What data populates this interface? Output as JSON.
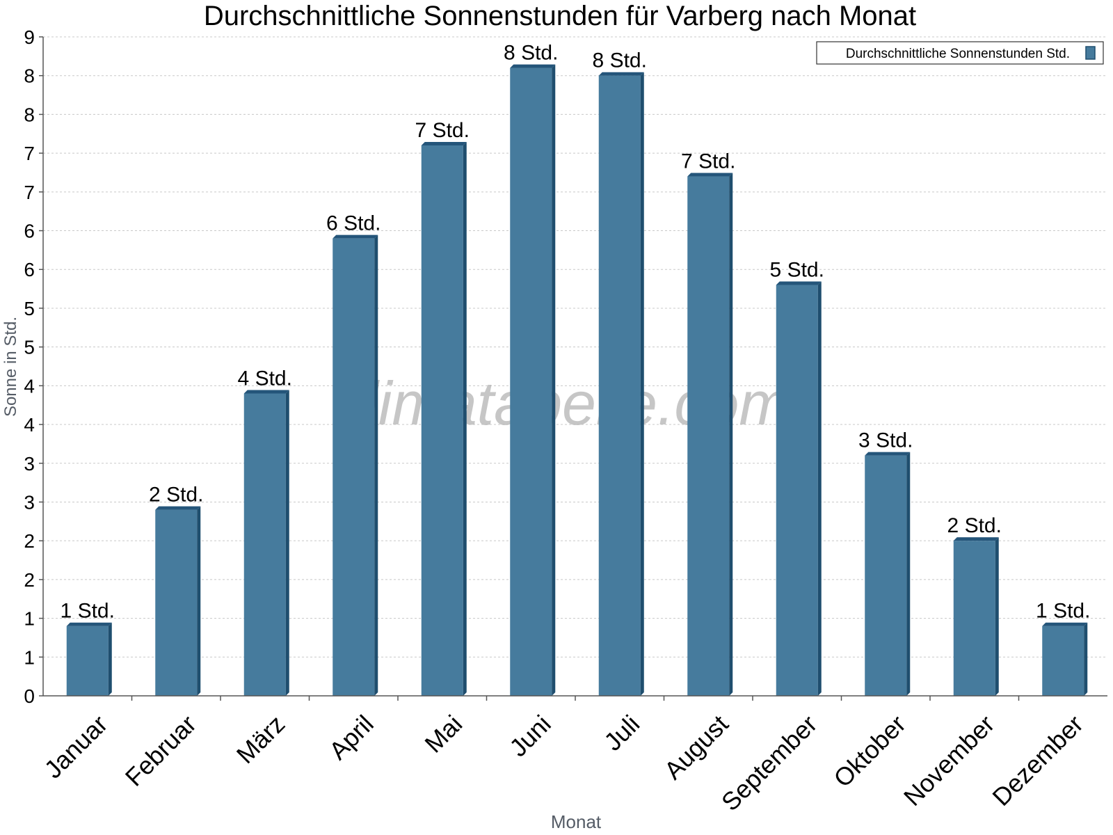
{
  "chart_data": {
    "type": "bar",
    "title": "Durchschnittliche Sonnenstunden für Varberg nach Monat",
    "xlabel": "Monat",
    "ylabel": "Sonne in Std.",
    "categories": [
      "Januar",
      "Februar",
      "März",
      "April",
      "Mai",
      "Juni",
      "Juli",
      "August",
      "September",
      "Oktober",
      "November",
      "Dezember"
    ],
    "series": [
      {
        "name": "Durchschnittliche Sonnenstunden Std.",
        "values": [
          0.9,
          2.4,
          3.9,
          5.9,
          7.1,
          8.1,
          8.0,
          6.7,
          5.3,
          3.1,
          2.0,
          0.9
        ],
        "labels": [
          "1 Std.",
          "2 Std.",
          "4 Std.",
          "6 Std.",
          "7 Std.",
          "8 Std.",
          "8 Std.",
          "7 Std.",
          "5 Std.",
          "3 Std.",
          "2 Std.",
          "1 Std."
        ]
      }
    ],
    "ylim": [
      0,
      8.5
    ],
    "ytick_values": [
      0,
      0.5,
      1,
      1.5,
      2,
      2.5,
      3,
      3.5,
      4,
      4.5,
      5,
      5.5,
      6,
      6.5,
      7,
      7.5,
      8,
      8.5
    ],
    "ytick_labels": [
      "0",
      "1",
      "1",
      "2",
      "2",
      "3",
      "3",
      "4",
      "4",
      "5",
      "5",
      "6",
      "6",
      "7",
      "7",
      "8",
      "8",
      "9"
    ],
    "grid": true,
    "legend_position": "top-right",
    "watermark": "klimatabelle.com",
    "colors": {
      "bar": "#467b9d",
      "bar_side": "#1f4e6e",
      "bar_top": "#24557a",
      "grid": "#c8c8c8",
      "axis": "#555555",
      "text": "#000000",
      "axis_title": "#555c66",
      "watermark": "#b4b4b4"
    }
  }
}
